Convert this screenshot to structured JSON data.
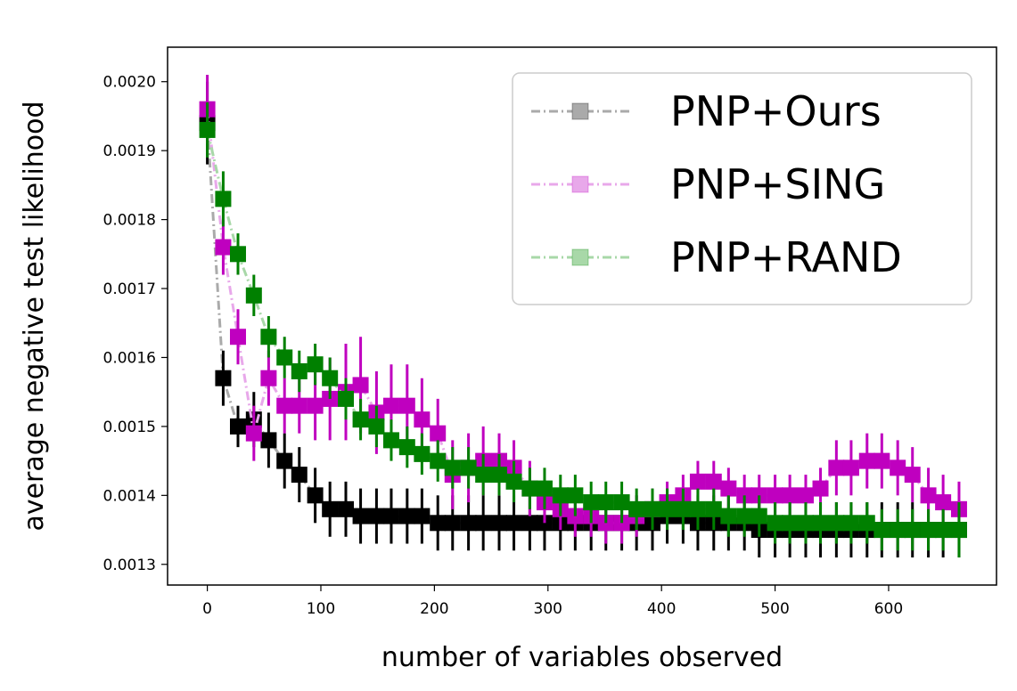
{
  "chart_data": {
    "type": "line",
    "xlabel": "number of variables observed",
    "ylabel": "average negative test likelihood",
    "xlim": [
      -35,
      695
    ],
    "ylim": [
      0.00127,
      0.00205
    ],
    "x_ticks": [
      0,
      100,
      200,
      300,
      400,
      500,
      600
    ],
    "x_tick_labels": [
      "0",
      "100",
      "200",
      "300",
      "400",
      "500",
      "600"
    ],
    "y_ticks": [
      0.0013,
      0.0014,
      0.0015,
      0.0016,
      0.0017,
      0.0018,
      0.0019,
      0.002
    ],
    "y_tick_labels": [
      "0.0013",
      "0.0014",
      "0.0015",
      "0.0016",
      "0.0017",
      "0.0018",
      "0.0019",
      "0.0020"
    ],
    "grid": false,
    "legend_position": "top-right",
    "series": [
      {
        "name": "PNP+Ours",
        "line_color": "#aaaaaa",
        "marker_color": "#000000",
        "x": [
          0,
          14,
          27,
          41,
          54,
          68,
          81,
          95,
          108,
          122,
          135,
          149,
          162,
          176,
          189,
          203,
          216,
          230,
          243,
          257,
          270,
          284,
          297,
          311,
          324,
          338,
          351,
          365,
          378,
          392,
          405,
          419,
          432,
          446,
          459,
          473,
          486,
          500,
          513,
          527,
          540,
          554,
          567,
          581,
          594,
          608,
          621,
          635,
          648,
          662
        ],
        "y": [
          0.00194,
          0.00157,
          0.0015,
          0.00151,
          0.00148,
          0.00145,
          0.00143,
          0.0014,
          0.00138,
          0.00138,
          0.00137,
          0.00137,
          0.00137,
          0.00137,
          0.00137,
          0.00136,
          0.00136,
          0.00136,
          0.00136,
          0.00136,
          0.00136,
          0.00136,
          0.00136,
          0.00136,
          0.00136,
          0.00136,
          0.00136,
          0.00136,
          0.00136,
          0.00136,
          0.00137,
          0.00137,
          0.00136,
          0.00136,
          0.00136,
          0.00136,
          0.00135,
          0.00135,
          0.00135,
          0.00135,
          0.00135,
          0.00135,
          0.00135,
          0.00135,
          0.00135,
          0.00135,
          0.00135,
          0.00135,
          0.00135,
          0.00135
        ],
        "err": [
          6e-05,
          4e-05,
          3e-05,
          4e-05,
          4e-05,
          4e-05,
          4e-05,
          4e-05,
          4e-05,
          4e-05,
          4e-05,
          4e-05,
          4e-05,
          4e-05,
          4e-05,
          4e-05,
          4e-05,
          4e-05,
          4e-05,
          4e-05,
          4e-05,
          4e-05,
          4e-05,
          4e-05,
          4e-05,
          4e-05,
          4e-05,
          4e-05,
          4e-05,
          4e-05,
          4e-05,
          4e-05,
          4e-05,
          4e-05,
          4e-05,
          4e-05,
          4e-05,
          4e-05,
          4e-05,
          4e-05,
          4e-05,
          4e-05,
          4e-05,
          4e-05,
          4e-05,
          4e-05,
          4e-05,
          4e-05,
          4e-05,
          4e-05
        ]
      },
      {
        "name": "PNP+SING",
        "line_color": "#e8a8ea",
        "marker_color": "#bf00bf",
        "x": [
          0,
          14,
          27,
          41,
          54,
          68,
          81,
          95,
          108,
          122,
          135,
          149,
          162,
          176,
          189,
          203,
          216,
          230,
          243,
          257,
          270,
          284,
          297,
          311,
          324,
          338,
          351,
          365,
          378,
          392,
          405,
          419,
          432,
          446,
          459,
          473,
          486,
          500,
          513,
          527,
          540,
          554,
          567,
          581,
          594,
          608,
          621,
          635,
          648,
          662
        ],
        "y": [
          0.00196,
          0.00176,
          0.00163,
          0.00149,
          0.00157,
          0.00153,
          0.00153,
          0.00153,
          0.00154,
          0.00155,
          0.00156,
          0.00152,
          0.00153,
          0.00153,
          0.00151,
          0.00149,
          0.00143,
          0.00144,
          0.00145,
          0.00145,
          0.00144,
          0.00141,
          0.00139,
          0.00138,
          0.00137,
          0.00137,
          0.00136,
          0.00136,
          0.00137,
          0.00138,
          0.00139,
          0.0014,
          0.00142,
          0.00142,
          0.00141,
          0.0014,
          0.0014,
          0.0014,
          0.0014,
          0.0014,
          0.00141,
          0.00144,
          0.00144,
          0.00145,
          0.00145,
          0.00144,
          0.00143,
          0.0014,
          0.00139,
          0.00138
        ],
        "err": [
          5e-05,
          4e-05,
          4e-05,
          4e-05,
          4e-05,
          4e-05,
          4e-05,
          5e-05,
          6e-05,
          7e-05,
          7e-05,
          6e-05,
          6e-05,
          6e-05,
          6e-05,
          5e-05,
          5e-05,
          5e-05,
          5e-05,
          4e-05,
          4e-05,
          4e-05,
          3e-05,
          3e-05,
          3e-05,
          3e-05,
          3e-05,
          3e-05,
          3e-05,
          3e-05,
          3e-05,
          3e-05,
          3e-05,
          3e-05,
          3e-05,
          3e-05,
          3e-05,
          3e-05,
          3e-05,
          3e-05,
          3e-05,
          4e-05,
          4e-05,
          4e-05,
          4e-05,
          4e-05,
          4e-05,
          4e-05,
          4e-05,
          4e-05
        ]
      },
      {
        "name": "PNP+RAND",
        "line_color": "#a8d8a8",
        "marker_color": "#008000",
        "x": [
          0,
          14,
          27,
          41,
          54,
          68,
          81,
          95,
          108,
          122,
          135,
          149,
          162,
          176,
          189,
          203,
          216,
          230,
          243,
          257,
          270,
          284,
          297,
          311,
          324,
          338,
          351,
          365,
          378,
          392,
          405,
          419,
          432,
          446,
          459,
          473,
          486,
          500,
          513,
          527,
          540,
          554,
          567,
          581,
          594,
          608,
          621,
          635,
          648,
          662
        ],
        "y": [
          0.00193,
          0.00183,
          0.00175,
          0.00169,
          0.00163,
          0.0016,
          0.00158,
          0.00159,
          0.00157,
          0.00154,
          0.00151,
          0.0015,
          0.00148,
          0.00147,
          0.00146,
          0.00145,
          0.00144,
          0.00144,
          0.00143,
          0.00143,
          0.00142,
          0.00141,
          0.00141,
          0.0014,
          0.0014,
          0.00139,
          0.00139,
          0.00139,
          0.00138,
          0.00138,
          0.00138,
          0.00138,
          0.00138,
          0.00138,
          0.00137,
          0.00137,
          0.00137,
          0.00136,
          0.00136,
          0.00136,
          0.00136,
          0.00136,
          0.00136,
          0.00136,
          0.00135,
          0.00135,
          0.00135,
          0.00135,
          0.00135,
          0.00135
        ],
        "err": [
          4e-05,
          4e-05,
          3e-05,
          3e-05,
          3e-05,
          3e-05,
          3e-05,
          3e-05,
          3e-05,
          3e-05,
          3e-05,
          3e-05,
          3e-05,
          3e-05,
          3e-05,
          3e-05,
          3e-05,
          3e-05,
          3e-05,
          3e-05,
          3e-05,
          3e-05,
          3e-05,
          3e-05,
          3e-05,
          3e-05,
          3e-05,
          3e-05,
          3e-05,
          3e-05,
          3e-05,
          3e-05,
          3e-05,
          3e-05,
          3e-05,
          3e-05,
          3e-05,
          3e-05,
          3e-05,
          3e-05,
          3e-05,
          3e-05,
          3e-05,
          3e-05,
          3e-05,
          3e-05,
          3e-05,
          3e-05,
          3e-05,
          4e-05
        ]
      }
    ]
  }
}
